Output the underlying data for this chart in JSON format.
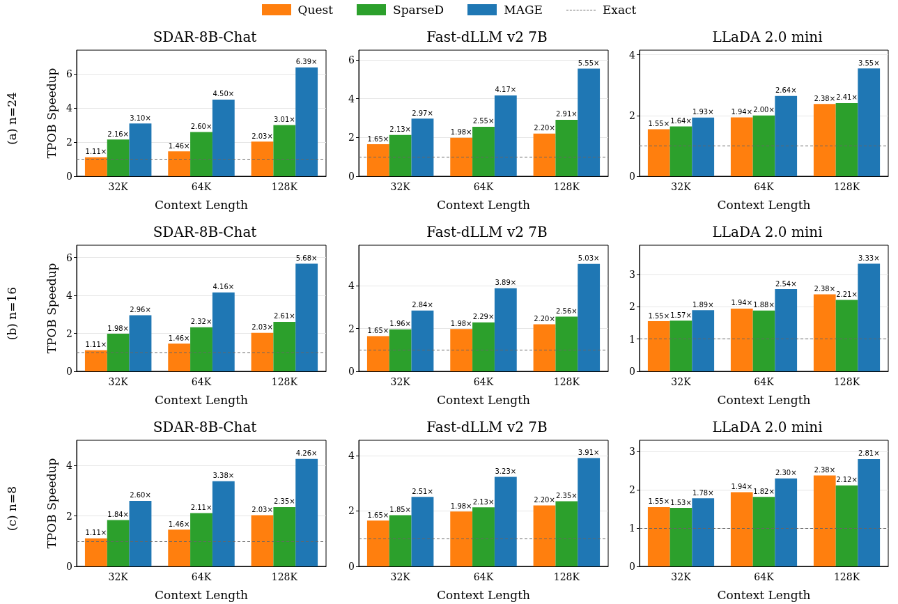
{
  "chart_data": [
    {
      "type": "bar",
      "title": "SDAR-8B-Chat",
      "xlabel": "Context Length",
      "ylabel": "TPOB Speedup",
      "annotations": [
        "(a) n=24"
      ],
      "categories": [
        "32K",
        "64K",
        "128K"
      ],
      "ylim": [
        0,
        7.4
      ],
      "yticks": [
        0,
        2,
        4,
        6
      ],
      "grid": "y",
      "legend": "top",
      "ref_lines": [
        {
          "axis": "y",
          "value": 1,
          "label": "Exact",
          "color": "#666666",
          "line_style": "dashed"
        }
      ],
      "series": [
        {
          "name": "Quest",
          "color": "#ff7f0e",
          "values": [
            1.11,
            1.46,
            2.03
          ],
          "value_labels": [
            "1.11×",
            "1.46×",
            "2.03×"
          ]
        },
        {
          "name": "SparseD",
          "color": "#2ca02c",
          "values": [
            2.16,
            2.6,
            3.01
          ],
          "value_labels": [
            "2.16×",
            "2.60×",
            "3.01×"
          ]
        },
        {
          "name": "MAGE",
          "color": "#1f77b4",
          "values": [
            3.1,
            4.5,
            6.39
          ],
          "value_labels": [
            "3.10×",
            "4.50×",
            "6.39×"
          ]
        }
      ]
    },
    {
      "type": "bar",
      "title": "Fast-dLLM v2 7B",
      "xlabel": "Context Length",
      "categories": [
        "32K",
        "64K",
        "128K"
      ],
      "ylim": [
        0,
        6.5
      ],
      "yticks": [
        0,
        2,
        4,
        6
      ],
      "grid": "y",
      "ref_lines": [
        {
          "axis": "y",
          "value": 1,
          "color": "#666666",
          "line_style": "dashed"
        }
      ],
      "series": [
        {
          "color": "#ff7f0e",
          "values": [
            1.65,
            1.98,
            2.2
          ],
          "value_labels": [
            "1.65×",
            "1.98×",
            "2.20×"
          ]
        },
        {
          "color": "#2ca02c",
          "values": [
            2.13,
            2.55,
            2.91
          ],
          "value_labels": [
            "2.13×",
            "2.55×",
            "2.91×"
          ]
        },
        {
          "color": "#1f77b4",
          "values": [
            2.97,
            4.17,
            5.55
          ],
          "value_labels": [
            "2.97×",
            "4.17×",
            "5.55×"
          ]
        }
      ]
    },
    {
      "type": "bar",
      "title": "LLaDA 2.0 mini",
      "xlabel": "Context Length",
      "categories": [
        "32K",
        "64K",
        "128K"
      ],
      "ylim": [
        0,
        4.15
      ],
      "yticks": [
        0,
        2,
        4
      ],
      "grid": "y",
      "ref_lines": [
        {
          "axis": "y",
          "value": 1,
          "color": "#666666",
          "line_style": "dashed"
        }
      ],
      "series": [
        {
          "color": "#ff7f0e",
          "values": [
            1.55,
            1.94,
            2.38
          ],
          "value_labels": [
            "1.55×",
            "1.94×",
            "2.38×"
          ]
        },
        {
          "color": "#2ca02c",
          "values": [
            1.64,
            2.0,
            2.41
          ],
          "value_labels": [
            "1.64×",
            "2.00×",
            "2.41×"
          ]
        },
        {
          "color": "#1f77b4",
          "values": [
            1.93,
            2.64,
            3.55
          ],
          "value_labels": [
            "1.93×",
            "2.64×",
            "3.55×"
          ]
        }
      ]
    },
    {
      "type": "bar",
      "title": "SDAR-8B-Chat",
      "xlabel": "Context Length",
      "ylabel": "TPOB Speedup",
      "annotations": [
        "(b) n=16"
      ],
      "categories": [
        "32K",
        "64K",
        "128K"
      ],
      "ylim": [
        0,
        6.65
      ],
      "yticks": [
        0,
        2,
        4,
        6
      ],
      "grid": "y",
      "ref_lines": [
        {
          "axis": "y",
          "value": 1,
          "color": "#666666",
          "line_style": "dashed"
        }
      ],
      "series": [
        {
          "color": "#ff7f0e",
          "values": [
            1.11,
            1.46,
            2.03
          ],
          "value_labels": [
            "1.11×",
            "1.46×",
            "2.03×"
          ]
        },
        {
          "color": "#2ca02c",
          "values": [
            1.98,
            2.32,
            2.61
          ],
          "value_labels": [
            "1.98×",
            "2.32×",
            "2.61×"
          ]
        },
        {
          "color": "#1f77b4",
          "values": [
            2.96,
            4.16,
            5.68
          ],
          "value_labels": [
            "2.96×",
            "4.16×",
            "5.68×"
          ]
        }
      ]
    },
    {
      "type": "bar",
      "title": "Fast-dLLM v2 7B",
      "xlabel": "Context Length",
      "categories": [
        "32K",
        "64K",
        "128K"
      ],
      "ylim": [
        0,
        5.9
      ],
      "yticks": [
        0,
        2,
        4
      ],
      "grid": "y",
      "ref_lines": [
        {
          "axis": "y",
          "value": 1,
          "color": "#666666",
          "line_style": "dashed"
        }
      ],
      "series": [
        {
          "color": "#ff7f0e",
          "values": [
            1.65,
            1.98,
            2.2
          ],
          "value_labels": [
            "1.65×",
            "1.98×",
            "2.20×"
          ]
        },
        {
          "color": "#2ca02c",
          "values": [
            1.96,
            2.29,
            2.56
          ],
          "value_labels": [
            "1.96×",
            "2.29×",
            "2.56×"
          ]
        },
        {
          "color": "#1f77b4",
          "values": [
            2.84,
            3.89,
            5.03
          ],
          "value_labels": [
            "2.84×",
            "3.89×",
            "5.03×"
          ]
        }
      ]
    },
    {
      "type": "bar",
      "title": "LLaDA 2.0 mini",
      "xlabel": "Context Length",
      "categories": [
        "32K",
        "64K",
        "128K"
      ],
      "ylim": [
        0,
        3.9
      ],
      "yticks": [
        0,
        1,
        2,
        3
      ],
      "grid": "y",
      "ref_lines": [
        {
          "axis": "y",
          "value": 1,
          "color": "#666666",
          "line_style": "dashed"
        }
      ],
      "series": [
        {
          "color": "#ff7f0e",
          "values": [
            1.55,
            1.94,
            2.38
          ],
          "value_labels": [
            "1.55×",
            "1.94×",
            "2.38×"
          ]
        },
        {
          "color": "#2ca02c",
          "values": [
            1.57,
            1.88,
            2.21
          ],
          "value_labels": [
            "1.57×",
            "1.88×",
            "2.21×"
          ]
        },
        {
          "color": "#1f77b4",
          "values": [
            1.89,
            2.54,
            3.33
          ],
          "value_labels": [
            "1.89×",
            "2.54×",
            "3.33×"
          ]
        }
      ]
    },
    {
      "type": "bar",
      "title": "SDAR-8B-Chat",
      "xlabel": "Context Length",
      "ylabel": "TPOB Speedup",
      "annotations": [
        "(c) n=8"
      ],
      "categories": [
        "32K",
        "64K",
        "128K"
      ],
      "ylim": [
        0,
        5.0
      ],
      "yticks": [
        0,
        2,
        4
      ],
      "grid": "y",
      "ref_lines": [
        {
          "axis": "y",
          "value": 1,
          "color": "#666666",
          "line_style": "dashed"
        }
      ],
      "series": [
        {
          "color": "#ff7f0e",
          "values": [
            1.11,
            1.46,
            2.03
          ],
          "value_labels": [
            "1.11×",
            "1.46×",
            "2.03×"
          ]
        },
        {
          "color": "#2ca02c",
          "values": [
            1.84,
            2.11,
            2.35
          ],
          "value_labels": [
            "1.84×",
            "2.11×",
            "2.35×"
          ]
        },
        {
          "color": "#1f77b4",
          "values": [
            2.6,
            3.38,
            4.26
          ],
          "value_labels": [
            "2.60×",
            "3.38×",
            "4.26×"
          ]
        }
      ]
    },
    {
      "type": "bar",
      "title": "Fast-dLLM v2 7B",
      "xlabel": "Context Length",
      "categories": [
        "32K",
        "64K",
        "128K"
      ],
      "ylim": [
        0,
        4.55
      ],
      "yticks": [
        0,
        2,
        4
      ],
      "grid": "y",
      "ref_lines": [
        {
          "axis": "y",
          "value": 1,
          "color": "#666666",
          "line_style": "dashed"
        }
      ],
      "series": [
        {
          "color": "#ff7f0e",
          "values": [
            1.65,
            1.98,
            2.2
          ],
          "value_labels": [
            "1.65×",
            "1.98×",
            "2.20×"
          ]
        },
        {
          "color": "#2ca02c",
          "values": [
            1.85,
            2.13,
            2.35
          ],
          "value_labels": [
            "1.85×",
            "2.13×",
            "2.35×"
          ]
        },
        {
          "color": "#1f77b4",
          "values": [
            2.51,
            3.23,
            3.91
          ],
          "value_labels": [
            "2.51×",
            "3.23×",
            "3.91×"
          ]
        }
      ]
    },
    {
      "type": "bar",
      "title": "LLaDA 2.0 mini",
      "xlabel": "Context Length",
      "categories": [
        "32K",
        "64K",
        "128K"
      ],
      "ylim": [
        0,
        3.3
      ],
      "yticks": [
        0,
        1,
        2,
        3
      ],
      "grid": "y",
      "ref_lines": [
        {
          "axis": "y",
          "value": 1,
          "color": "#666666",
          "line_style": "dashed"
        }
      ],
      "series": [
        {
          "color": "#ff7f0e",
          "values": [
            1.55,
            1.94,
            2.38
          ],
          "value_labels": [
            "1.55×",
            "1.94×",
            "2.38×"
          ]
        },
        {
          "color": "#2ca02c",
          "values": [
            1.53,
            1.82,
            2.12
          ],
          "value_labels": [
            "1.53×",
            "1.82×",
            "2.12×"
          ]
        },
        {
          "color": "#1f77b4",
          "values": [
            1.78,
            2.3,
            2.81
          ],
          "value_labels": [
            "1.78×",
            "2.30×",
            "2.81×"
          ]
        }
      ]
    }
  ]
}
